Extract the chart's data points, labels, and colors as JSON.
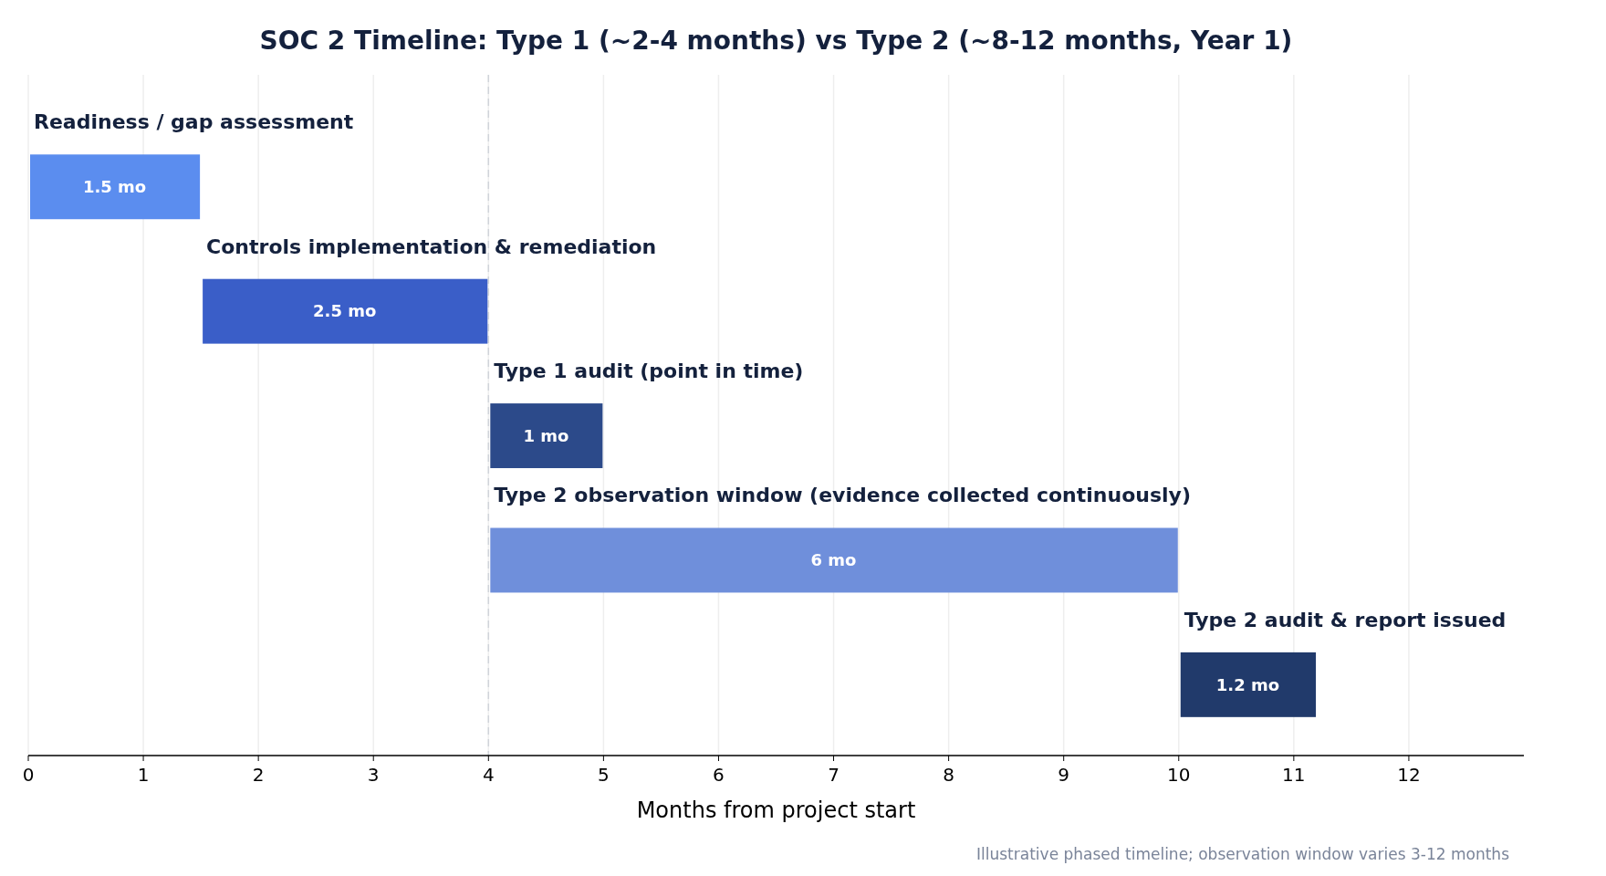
{
  "chart_data": {
    "type": "bar",
    "orientation": "horizontal",
    "title": "SOC 2 Timeline: Type 1 (~2-4 months) vs Type 2 (~8-12 months, Year 1)",
    "categories": [
      "Readiness / gap assessment",
      "Controls implementation & remediation",
      "Type 1 audit (point in time)",
      "Type 2 observation window (evidence collected continuously)",
      "Type 2 audit & report issued"
    ],
    "base": [
      0,
      1.5,
      4,
      4,
      10
    ],
    "values": [
      1.5,
      2.5,
      1,
      6,
      1.2
    ],
    "colors": [
      "#5b8def",
      "#3a5ec8",
      "#2c4a8a",
      "#6f8fdb",
      "#213a6b"
    ],
    "value_labels": [
      "1.5 mo",
      "2.5 mo",
      "1 mo",
      "6 mo",
      "1.2 mo"
    ],
    "xlabel": "Months from project start",
    "xlim": [
      0,
      13
    ],
    "xticks": [
      0,
      1,
      2,
      3,
      4,
      5,
      6,
      7,
      8,
      9,
      10,
      11,
      12
    ],
    "grid": "x",
    "ref_lines": [
      {
        "axis": "x",
        "value": 4,
        "color": "#d0d4da",
        "line_style": "dashed"
      }
    ],
    "annotations": [
      "Illustrative phased timeline; observation window varies 3-12 months"
    ]
  }
}
